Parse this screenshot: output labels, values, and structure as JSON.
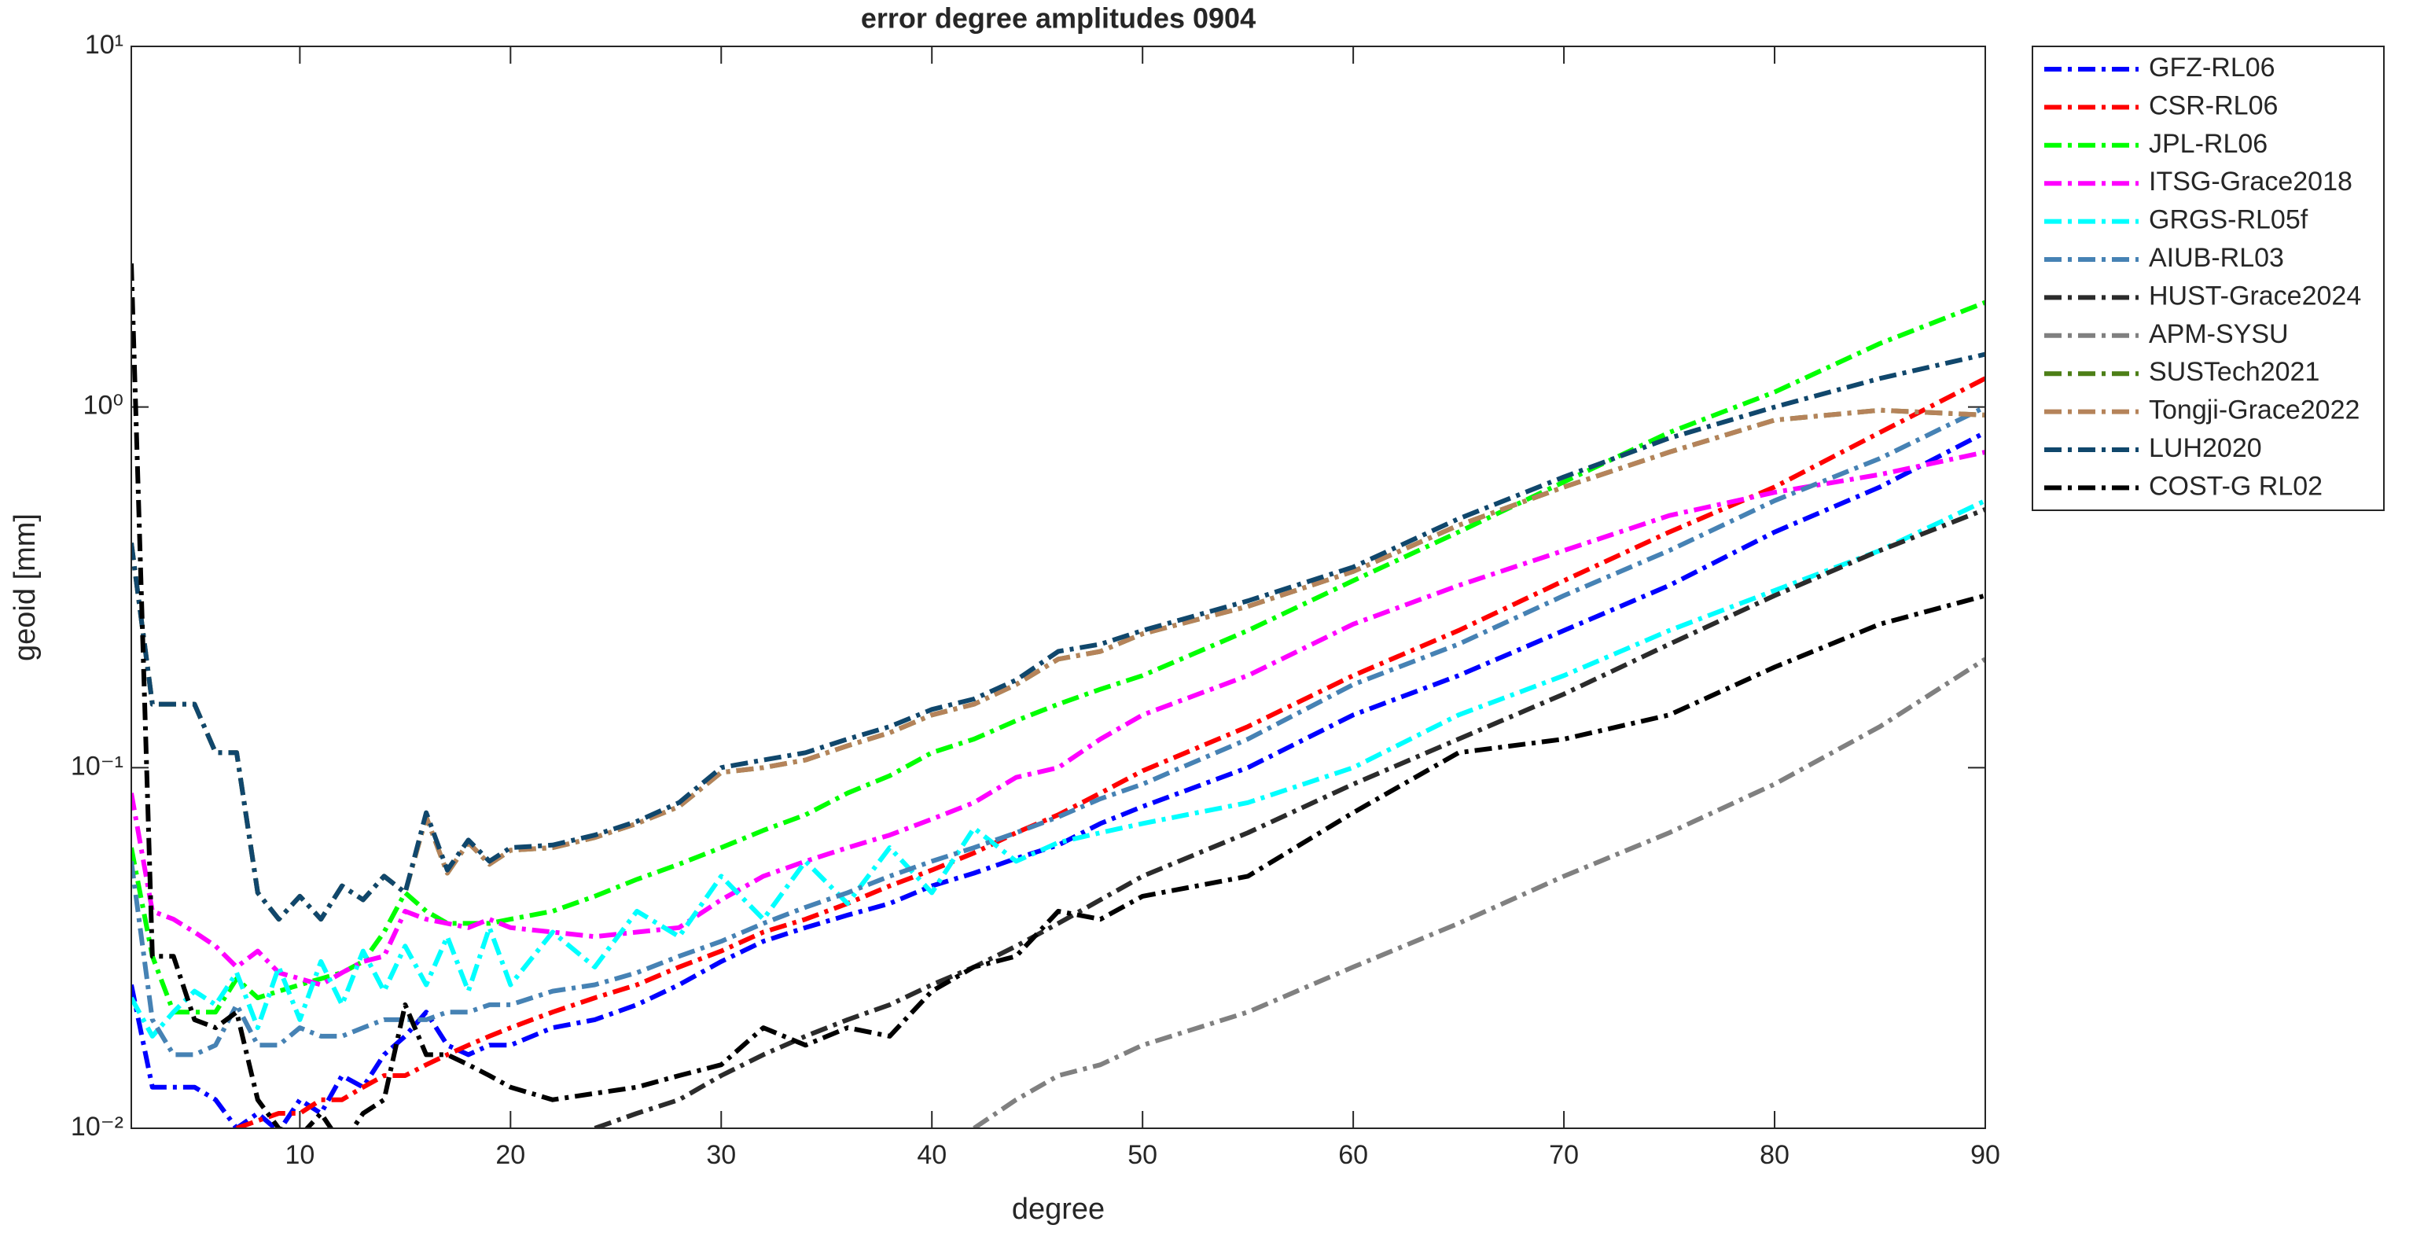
{
  "chart_data": {
    "type": "line",
    "title": "error degree amplitudes 0904",
    "xlabel": "degree",
    "ylabel": "geoid [mm]",
    "log_y": true,
    "grid": false,
    "legend": "outside-right",
    "x": [
      2,
      3,
      4,
      5,
      6,
      7,
      8,
      9,
      10,
      11,
      12,
      13,
      14,
      15,
      16,
      17,
      18,
      19,
      20,
      22,
      24,
      26,
      28,
      30,
      32,
      34,
      36,
      38,
      40,
      42,
      44,
      46,
      48,
      50,
      55,
      60,
      65,
      70,
      75,
      80,
      85,
      90
    ],
    "xlim": [
      2,
      90
    ],
    "xticks": [
      10,
      20,
      30,
      40,
      50,
      60,
      70,
      80,
      90
    ],
    "ylim": [
      0.01,
      10
    ],
    "yticks": [
      {
        "value": 0.01,
        "label": "10⁻²"
      },
      {
        "value": 0.1,
        "label": "10⁻¹"
      },
      {
        "value": 1,
        "label": "10⁰"
      },
      {
        "value": 10,
        "label": "10¹"
      }
    ],
    "series": [
      {
        "name": "GFZ-RL06",
        "color": "#0000ff",
        "values": [
          0.025,
          0.013,
          0.013,
          0.013,
          0.012,
          0.01,
          0.011,
          0.0098,
          0.012,
          0.011,
          0.014,
          0.013,
          0.016,
          0.018,
          0.021,
          0.017,
          0.016,
          0.017,
          0.017,
          0.019,
          0.02,
          0.022,
          0.025,
          0.029,
          0.033,
          0.036,
          0.039,
          0.042,
          0.047,
          0.051,
          0.056,
          0.061,
          0.07,
          0.078,
          0.1,
          0.14,
          0.18,
          0.24,
          0.32,
          0.45,
          0.6,
          0.85
        ]
      },
      {
        "name": "CSR-RL06",
        "color": "#ff0000",
        "values": [
          null,
          null,
          null,
          null,
          null,
          0.01,
          0.0105,
          0.011,
          0.011,
          0.012,
          0.012,
          0.013,
          0.014,
          0.014,
          0.015,
          0.016,
          0.017,
          0.018,
          0.019,
          0.021,
          0.023,
          0.025,
          0.028,
          0.031,
          0.035,
          0.038,
          0.042,
          0.047,
          0.052,
          0.058,
          0.066,
          0.074,
          0.085,
          0.098,
          0.13,
          0.18,
          0.24,
          0.33,
          0.45,
          0.6,
          0.85,
          1.2
        ]
      },
      {
        "name": "JPL-RL06",
        "color": "#00ff00",
        "values": [
          0.06,
          0.03,
          0.021,
          0.021,
          0.021,
          0.026,
          0.023,
          0.024,
          0.025,
          0.026,
          0.027,
          0.029,
          0.035,
          0.045,
          0.04,
          0.037,
          0.037,
          0.037,
          0.038,
          0.04,
          0.044,
          0.049,
          0.054,
          0.06,
          0.067,
          0.074,
          0.085,
          0.095,
          0.11,
          0.12,
          0.135,
          0.15,
          0.165,
          0.18,
          0.24,
          0.33,
          0.45,
          0.62,
          0.85,
          1.1,
          1.5,
          1.95
        ]
      },
      {
        "name": "ITSG-Grace2018",
        "color": "#ff00ff",
        "values": [
          0.085,
          0.04,
          0.038,
          0.035,
          0.032,
          0.028,
          0.031,
          0.027,
          0.026,
          0.025,
          0.027,
          0.029,
          0.03,
          0.04,
          0.038,
          0.037,
          0.036,
          0.038,
          0.036,
          0.035,
          0.034,
          0.035,
          0.036,
          0.043,
          0.05,
          0.055,
          0.06,
          0.065,
          0.072,
          0.08,
          0.094,
          0.1,
          0.12,
          0.14,
          0.18,
          0.25,
          0.32,
          0.4,
          0.5,
          0.58,
          0.65,
          0.75
        ]
      },
      {
        "name": "GRGS-RL05f",
        "color": "#00ffff",
        "values": [
          0.023,
          0.018,
          0.021,
          0.024,
          0.022,
          0.027,
          0.019,
          0.028,
          0.02,
          0.029,
          0.022,
          0.031,
          0.024,
          0.032,
          0.025,
          0.034,
          0.024,
          0.036,
          0.025,
          0.035,
          0.028,
          0.04,
          0.034,
          0.05,
          0.038,
          0.055,
          0.042,
          0.06,
          0.045,
          0.068,
          0.055,
          0.062,
          0.066,
          0.07,
          0.08,
          0.1,
          0.14,
          0.18,
          0.24,
          0.31,
          0.4,
          0.55
        ]
      },
      {
        "name": "AIUB-RL03",
        "color": "#4682b4",
        "values": [
          0.055,
          0.02,
          0.016,
          0.016,
          0.017,
          0.022,
          0.017,
          0.017,
          0.019,
          0.018,
          0.018,
          0.019,
          0.02,
          0.02,
          0.02,
          0.021,
          0.021,
          0.022,
          0.022,
          0.024,
          0.025,
          0.027,
          0.03,
          0.033,
          0.037,
          0.041,
          0.045,
          0.05,
          0.055,
          0.06,
          0.066,
          0.073,
          0.082,
          0.09,
          0.12,
          0.17,
          0.22,
          0.3,
          0.4,
          0.55,
          0.72,
          1.0
        ]
      },
      {
        "name": "HUST-Grace2024",
        "color": "#2b2b2b",
        "values": [
          null,
          null,
          null,
          null,
          null,
          null,
          null,
          null,
          null,
          null,
          null,
          null,
          null,
          null,
          null,
          null,
          null,
          null,
          null,
          null,
          0.01,
          0.011,
          0.012,
          0.014,
          0.016,
          0.018,
          0.02,
          0.022,
          0.025,
          0.028,
          0.032,
          0.037,
          0.043,
          0.05,
          0.066,
          0.09,
          0.12,
          0.16,
          0.22,
          0.3,
          0.4,
          0.52
        ]
      },
      {
        "name": "APM-SYSU",
        "color": "#808080",
        "values": [
          null,
          null,
          null,
          null,
          null,
          null,
          null,
          null,
          null,
          null,
          null,
          null,
          null,
          null,
          null,
          null,
          null,
          null,
          null,
          null,
          null,
          null,
          null,
          null,
          null,
          null,
          null,
          null,
          null,
          0.01,
          0.012,
          0.014,
          0.015,
          0.017,
          0.021,
          0.028,
          0.037,
          0.05,
          0.066,
          0.09,
          0.13,
          0.2
        ]
      },
      {
        "name": "SUSTech2021",
        "color": "#4d7f17",
        "values": [
          0.42,
          0.15,
          0.15,
          0.15,
          0.11,
          0.11,
          0.045,
          0.038,
          0.044,
          0.038,
          0.047,
          0.043,
          0.05,
          0.045,
          0.073,
          0.051,
          0.062,
          0.054,
          0.059,
          0.06,
          0.064,
          0.07,
          0.078,
          0.097,
          0.1,
          0.105,
          0.115,
          0.125,
          0.14,
          0.15,
          0.17,
          0.2,
          0.21,
          0.235,
          0.28,
          0.35,
          0.47,
          0.6,
          0.75,
          0.92,
          0.98,
          0.95
        ]
      },
      {
        "name": "Tongji-Grace2022",
        "color": "#b5835a",
        "values": [
          0.42,
          0.15,
          0.15,
          0.15,
          0.11,
          0.11,
          0.045,
          0.038,
          0.044,
          0.038,
          0.047,
          0.043,
          0.05,
          0.045,
          0.073,
          0.051,
          0.062,
          0.054,
          0.059,
          0.06,
          0.064,
          0.07,
          0.078,
          0.097,
          0.1,
          0.105,
          0.115,
          0.125,
          0.14,
          0.15,
          0.17,
          0.2,
          0.21,
          0.235,
          0.28,
          0.35,
          0.47,
          0.6,
          0.75,
          0.92,
          0.98,
          0.95
        ]
      },
      {
        "name": "LUH2020",
        "color": "#10476c",
        "values": [
          0.42,
          0.15,
          0.15,
          0.15,
          0.11,
          0.11,
          0.045,
          0.038,
          0.044,
          0.038,
          0.047,
          0.043,
          0.05,
          0.045,
          0.075,
          0.052,
          0.063,
          0.055,
          0.06,
          0.061,
          0.065,
          0.071,
          0.08,
          0.1,
          0.105,
          0.11,
          0.12,
          0.13,
          0.145,
          0.155,
          0.175,
          0.21,
          0.22,
          0.24,
          0.29,
          0.36,
          0.49,
          0.64,
          0.82,
          1.0,
          1.2,
          1.4
        ]
      },
      {
        "name": "COST-G RL02",
        "color": "#000000",
        "values": [
          2.5,
          0.03,
          0.03,
          0.02,
          0.019,
          0.021,
          0.012,
          0.01,
          0.0095,
          0.011,
          0.009,
          0.011,
          0.012,
          0.022,
          0.016,
          0.016,
          0.015,
          0.014,
          0.013,
          0.012,
          0.0125,
          0.013,
          0.014,
          0.015,
          0.019,
          0.017,
          0.019,
          0.018,
          0.024,
          0.028,
          0.03,
          0.04,
          0.038,
          0.044,
          0.05,
          0.075,
          0.11,
          0.12,
          0.14,
          0.19,
          0.25,
          0.3
        ]
      }
    ]
  }
}
